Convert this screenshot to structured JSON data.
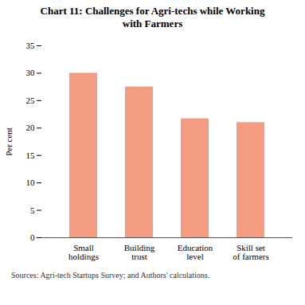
{
  "chart_data": {
    "type": "bar",
    "title": "Chart 11: Challenges for Agri-techs while Working\nwith Farmers",
    "categories": [
      "Small\nholdings",
      "Building\ntrust",
      "Education\nlevel",
      "Skill set\nof farmers"
    ],
    "values": [
      30.0,
      27.5,
      21.7,
      21.0
    ],
    "color": "#F49C82",
    "ylabel": "Per cent",
    "ylim": [
      0,
      35
    ],
    "yticks": [
      0,
      5,
      10,
      15,
      20,
      25,
      30,
      35
    ],
    "grid": false,
    "caption": "Sources: Agri-tech Startups Survey; and Authors' calculations."
  }
}
